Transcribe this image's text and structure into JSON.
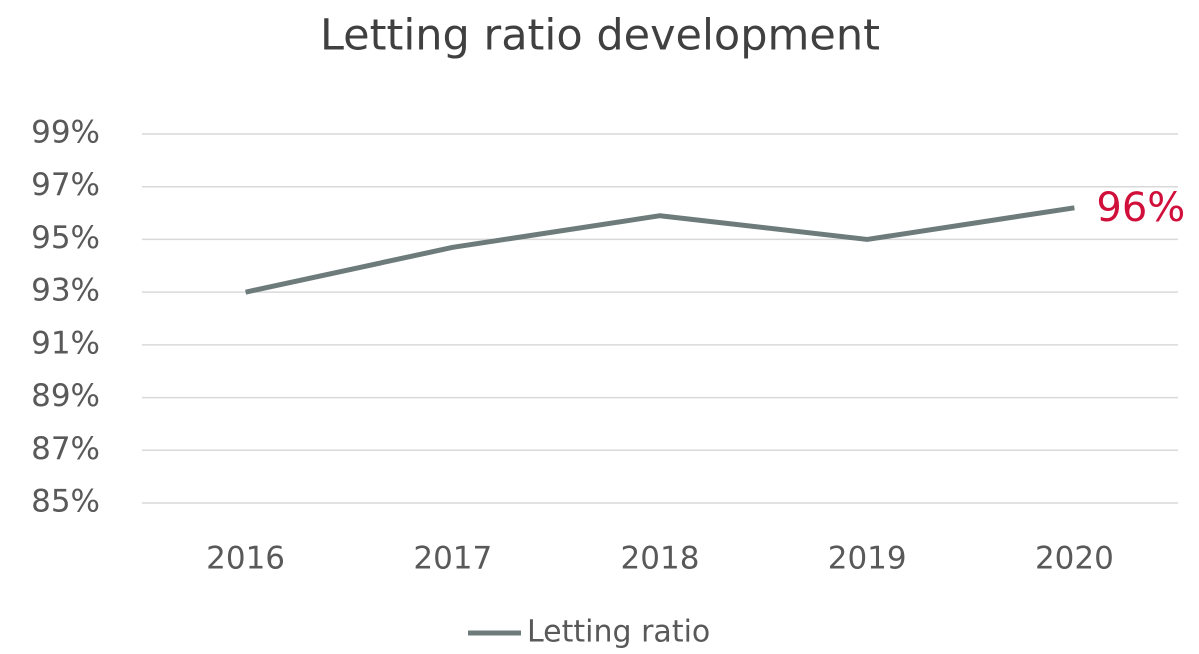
{
  "chart_data": {
    "type": "line",
    "title": "Letting ratio development",
    "categories": [
      "2016",
      "2017",
      "2018",
      "2019",
      "2020"
    ],
    "series": [
      {
        "name": "Letting ratio",
        "color": "#6e7b7b",
        "values": [
          93.0,
          94.7,
          95.9,
          95.0,
          96.2
        ],
        "value_labels": [
          null,
          null,
          null,
          null,
          "96%"
        ],
        "value_label_color": "#d0103a"
      }
    ],
    "ylim": [
      85,
      99
    ],
    "yticks": [
      {
        "value": 85,
        "label": "85%"
      },
      {
        "value": 87,
        "label": "87%"
      },
      {
        "value": 89,
        "label": "89%"
      },
      {
        "value": 91,
        "label": "91%"
      },
      {
        "value": 93,
        "label": "93%"
      },
      {
        "value": 95,
        "label": "95%"
      },
      {
        "value": 97,
        "label": "97%"
      },
      {
        "value": 99,
        "label": "99%"
      }
    ],
    "grid": true,
    "legend": "bottom"
  }
}
